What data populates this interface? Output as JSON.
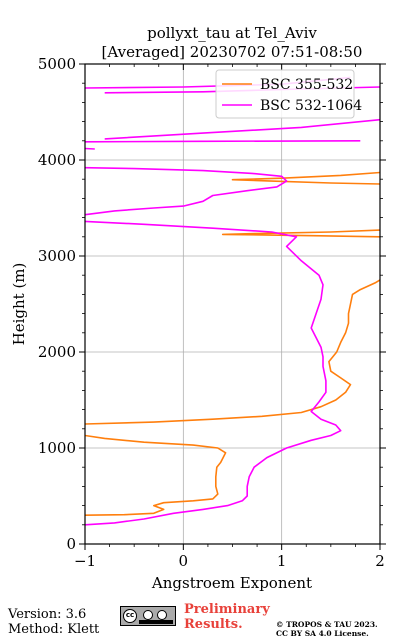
{
  "chart_data": {
    "type": "line",
    "title": "pollyxt_tau at Tel_Aviv",
    "subtitle": "[Averaged] 20230702 07:51-08:50",
    "xlabel": "Angstroem Exponent",
    "ylabel": "Height (m)",
    "xlim": [
      -1,
      2
    ],
    "ylim": [
      0,
      5000
    ],
    "xticks": [
      -1,
      0,
      1,
      2
    ],
    "yticks": [
      0,
      1000,
      2000,
      3000,
      4000,
      5000
    ],
    "xtick_labels": [
      "−1",
      "0",
      "1",
      "2"
    ],
    "ytick_labels": [
      "0",
      "1000",
      "2000",
      "3000",
      "4000",
      "5000"
    ],
    "grid": true,
    "legend_position": "top-right",
    "series": [
      {
        "name": "BSC 355-532",
        "color": "#ff7f0e",
        "segments": [
          [
            [
              -1.0,
              300
            ],
            [
              -0.6,
              305
            ],
            [
              -0.3,
              320
            ],
            [
              -0.2,
              360
            ],
            [
              -0.3,
              400
            ],
            [
              -0.2,
              430
            ],
            [
              0.1,
              450
            ],
            [
              0.3,
              470
            ],
            [
              0.35,
              520
            ],
            [
              0.33,
              600
            ],
            [
              0.33,
              700
            ],
            [
              0.34,
              800
            ],
            [
              0.38,
              850
            ],
            [
              0.43,
              950
            ],
            [
              0.35,
              1000
            ],
            [
              0.1,
              1030
            ],
            [
              -0.4,
              1060
            ],
            [
              -0.8,
              1100
            ],
            [
              -1.0,
              1130
            ]
          ],
          [
            [
              -1.0,
              1250
            ],
            [
              -0.3,
              1270
            ],
            [
              0.3,
              1300
            ],
            [
              0.8,
              1330
            ],
            [
              1.2,
              1370
            ],
            [
              1.4,
              1430
            ],
            [
              1.55,
              1500
            ],
            [
              1.65,
              1580
            ],
            [
              1.7,
              1660
            ],
            [
              1.6,
              1730
            ],
            [
              1.5,
              1800
            ],
            [
              1.48,
              1900
            ],
            [
              1.56,
              2000
            ],
            [
              1.6,
              2100
            ],
            [
              1.65,
              2200
            ],
            [
              1.68,
              2300
            ],
            [
              1.68,
              2400
            ],
            [
              1.7,
              2500
            ],
            [
              1.72,
              2600
            ],
            [
              1.8,
              2650
            ],
            [
              1.95,
              2720
            ],
            [
              2.0,
              2750
            ]
          ],
          [
            [
              2.0,
              3200
            ],
            [
              1.4,
              3210
            ],
            [
              0.8,
              3220
            ],
            [
              0.4,
              3225
            ],
            [
              0.8,
              3235
            ],
            [
              1.5,
              3250
            ],
            [
              2.0,
              3270
            ]
          ],
          [
            [
              2.0,
              3750
            ],
            [
              1.5,
              3760
            ],
            [
              0.9,
              3780
            ],
            [
              0.5,
              3795
            ],
            [
              1.0,
              3810
            ],
            [
              1.6,
              3840
            ],
            [
              2.0,
              3870
            ]
          ]
        ]
      },
      {
        "name": "BSC 532-1064",
        "color": "#ff00ff",
        "segments": [
          [
            [
              -1.0,
              200
            ],
            [
              -0.7,
              220
            ],
            [
              -0.4,
              260
            ],
            [
              -0.1,
              320
            ],
            [
              0.2,
              360
            ],
            [
              0.45,
              400
            ],
            [
              0.6,
              450
            ],
            [
              0.65,
              500
            ],
            [
              0.65,
              600
            ],
            [
              0.67,
              700
            ],
            [
              0.72,
              800
            ],
            [
              0.85,
              900
            ],
            [
              1.05,
              1000
            ],
            [
              1.3,
              1080
            ],
            [
              1.5,
              1130
            ],
            [
              1.6,
              1180
            ],
            [
              1.55,
              1240
            ],
            [
              1.4,
              1300
            ],
            [
              1.3,
              1380
            ],
            [
              1.38,
              1480
            ],
            [
              1.45,
              1580
            ],
            [
              1.45,
              1700
            ],
            [
              1.42,
              1850
            ],
            [
              1.42,
              1950
            ],
            [
              1.4,
              2050
            ],
            [
              1.35,
              2150
            ],
            [
              1.3,
              2250
            ],
            [
              1.35,
              2400
            ],
            [
              1.4,
              2550
            ],
            [
              1.42,
              2700
            ],
            [
              1.38,
              2800
            ],
            [
              1.2,
              2950
            ],
            [
              1.05,
              3100
            ],
            [
              1.15,
              3200
            ],
            [
              0.9,
              3250
            ],
            [
              0.3,
              3290
            ],
            [
              -0.4,
              3330
            ],
            [
              -1.0,
              3360
            ]
          ],
          [
            [
              -1.0,
              3430
            ],
            [
              -0.7,
              3470
            ],
            [
              -0.3,
              3500
            ],
            [
              0.0,
              3520
            ],
            [
              0.2,
              3570
            ],
            [
              0.3,
              3630
            ],
            [
              0.65,
              3680
            ],
            [
              0.95,
              3720
            ],
            [
              1.05,
              3780
            ],
            [
              1.0,
              3830
            ],
            [
              0.7,
              3860
            ],
            [
              0.2,
              3890
            ],
            [
              -0.5,
              3910
            ],
            [
              -1.0,
              3920
            ]
          ],
          [
            [
              -1.0,
              4120
            ],
            [
              -0.9,
              4115
            ]
          ],
          [
            [
              -1.0,
              4190
            ],
            [
              0.2,
              4195
            ],
            [
              1.8,
              4200
            ]
          ],
          [
            [
              -0.8,
              4220
            ],
            [
              0.2,
              4280
            ],
            [
              1.2,
              4340
            ],
            [
              2.0,
              4420
            ]
          ],
          [
            [
              -0.8,
              4700
            ],
            [
              0.2,
              4710
            ],
            [
              1.2,
              4740
            ],
            [
              2.0,
              4760
            ]
          ],
          [
            [
              -1.0,
              4750
            ],
            [
              0.0,
              4760
            ],
            [
              1.0,
              4790
            ],
            [
              1.7,
              4860
            ]
          ]
        ]
      }
    ]
  },
  "footer": {
    "version": "Version: 3.6",
    "method": "Method: Klett",
    "preliminary_line1": "Preliminary",
    "preliminary_line2": "Results.",
    "license_line1": "© TROPOS & TAU 2023.",
    "license_line2": "CC BY SA 4.0 License.",
    "cc_text": "cc"
  }
}
